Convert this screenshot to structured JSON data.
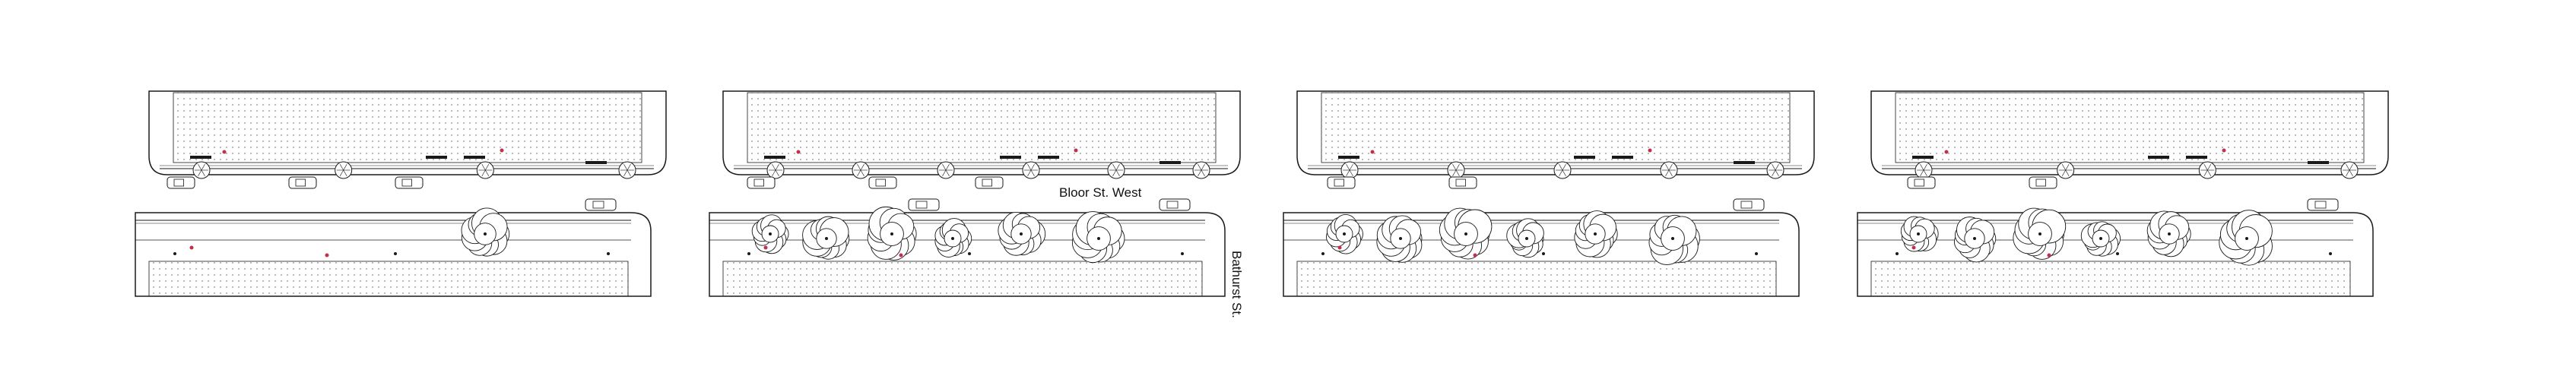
{
  "labels": {
    "street_horizontal": "Bloor St. West",
    "street_vertical": "Bathurst St."
  },
  "panels": [
    {
      "id": "panel-1",
      "top_street_trees": 4,
      "bottom_street_trees": 1,
      "cars_top_lane": 3,
      "cars_bottom_lane": 1
    },
    {
      "id": "panel-2",
      "top_street_trees": 6,
      "bottom_street_trees": 6,
      "cars_top_lane": 3,
      "cars_bottom_lane": 2
    },
    {
      "id": "panel-3",
      "top_street_trees": 5,
      "bottom_street_trees": 6,
      "cars_top_lane": 2,
      "cars_bottom_lane": 1
    },
    {
      "id": "panel-4",
      "top_street_trees": 4,
      "bottom_street_trees": 6,
      "cars_top_lane": 2,
      "cars_bottom_lane": 1
    }
  ],
  "colors": {
    "line": "#1a1a1a",
    "hatch": "#8a8a8a",
    "accent_dot": "#c0304a",
    "tree_fill": "#ffffff"
  }
}
